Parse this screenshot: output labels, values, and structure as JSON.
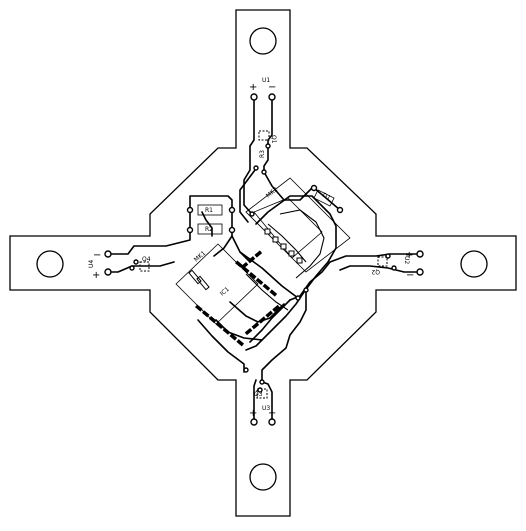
{
  "board": {
    "labels": {
      "u1": "U1",
      "u2": "U2",
      "u3": "U3",
      "u4": "U4",
      "q1": "Q1",
      "q2": "Q2",
      "q3": "Q3",
      "q4": "Q4",
      "r1": "R1",
      "r2": "R2",
      "r3": "R3",
      "d1": "D1",
      "mk1": "MK1",
      "mk2": "MK2",
      "ic": "IC1",
      "plus": "+",
      "minus": "−"
    }
  }
}
